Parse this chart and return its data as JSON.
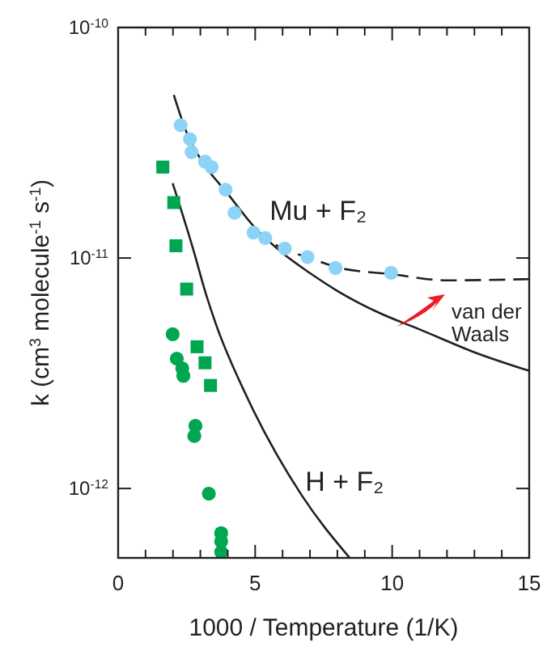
{
  "chart_data": {
    "type": "scatter",
    "xlabel": "1000 / Temperature (1/K)",
    "ylabel": "k (cm$^{3}$ molecule$^{-1}$ s$^{-1}$)",
    "log": "y",
    "xlim": [
      0,
      15
    ],
    "ylim": [
      5e-13,
      1e-10
    ],
    "xticks": [
      0,
      {
        "value": 1,
        "label": null
      },
      {
        "value": 2,
        "label": null
      },
      {
        "value": 3,
        "label": null
      },
      {
        "value": 4,
        "label": null
      },
      5,
      {
        "value": 6,
        "label": null
      },
      {
        "value": 7,
        "label": null
      },
      {
        "value": 8,
        "label": null
      },
      {
        "value": 9,
        "label": null
      },
      10,
      {
        "value": 11,
        "label": null
      },
      {
        "value": 12,
        "label": null
      },
      {
        "value": 13,
        "label": null
      },
      {
        "value": 14,
        "label": null
      },
      15
    ],
    "yticks": [
      {
        "value": 1e-12,
        "label": "10$^{-12}$"
      },
      {
        "value": 1e-11,
        "label": "10$^{-11}$"
      },
      {
        "value": 1e-10,
        "label": "10$^{-10}$"
      }
    ],
    "grid": false,
    "series": [
      {
        "type": "line",
        "color": "#231f20",
        "line_style": "solid",
        "marker": "none",
        "x": [
          2.03,
          2.5,
          3,
          4,
          5,
          6,
          7,
          8,
          9.5,
          11,
          13,
          15
        ],
        "values": [
          5.1e-11,
          3.5e-11,
          2.7e-11,
          1.9e-11,
          1.35e-11,
          1.05e-11,
          8.6e-12,
          7.2e-12,
          5.8e-12,
          4.9e-12,
          3.9e-12,
          3.24e-12
        ]
      },
      {
        "type": "line",
        "color": "#231f20",
        "line_style": "dashed",
        "marker": "none",
        "x": [
          5,
          6,
          7,
          8,
          10,
          12,
          15
        ],
        "values": [
          1.3e-11,
          1.1e-11,
          1e-11,
          9.1e-12,
          8.5e-12,
          8e-12,
          8.1e-12
        ]
      },
      {
        "type": "line",
        "name": "H + F₂",
        "color": "#231f20",
        "line_style": "solid",
        "marker": "none",
        "x": [
          1.99,
          2.78,
          3.17,
          3.56,
          4.74,
          6.71,
          8.45
        ],
        "values": [
          2.11e-11,
          1.05e-11,
          7.2e-12,
          5.2e-12,
          2.44e-12,
          9.3e-13,
          5e-13
        ]
      },
      {
        "type": "scatter",
        "color": "#00a650",
        "marker": "square",
        "x": [
          1.63,
          2.03,
          2.11,
          2.5,
          2.88,
          3.17,
          3.37
        ],
        "values": [
          2.48e-11,
          1.74e-11,
          1.13e-11,
          7.33e-12,
          4.12e-12,
          3.51e-12,
          2.8e-12
        ]
      },
      {
        "type": "scatter",
        "color": "#00a650",
        "marker": "circle",
        "x": [
          1.99,
          2.14,
          2.34,
          2.38,
          2.82,
          2.78,
          3.31,
          3.76,
          3.76,
          3.76
        ],
        "values": [
          4.67e-12,
          3.66e-12,
          3.32e-12,
          3.08e-12,
          1.87e-12,
          1.69e-12,
          9.5e-13,
          6.4e-13,
          5.9e-13,
          5.3e-13
        ]
      },
      {
        "type": "scatter",
        "name": "Mu + F₂",
        "color": "#8dd3f5",
        "marker": "circle",
        "x": [
          2.28,
          2.62,
          2.68,
          3.17,
          3.41,
          3.92,
          4.25,
          4.94,
          5.37,
          6.08,
          6.91,
          7.93,
          9.96
        ],
        "values": [
          3.77e-11,
          3.28e-11,
          2.88e-11,
          2.62e-11,
          2.48e-11,
          1.98e-11,
          1.57e-11,
          1.29e-11,
          1.22e-11,
          1.1e-11,
          1.01e-11,
          9.06e-12,
          8.63e-12
        ]
      }
    ],
    "annotations": [
      "van der\nWaals"
    ]
  }
}
